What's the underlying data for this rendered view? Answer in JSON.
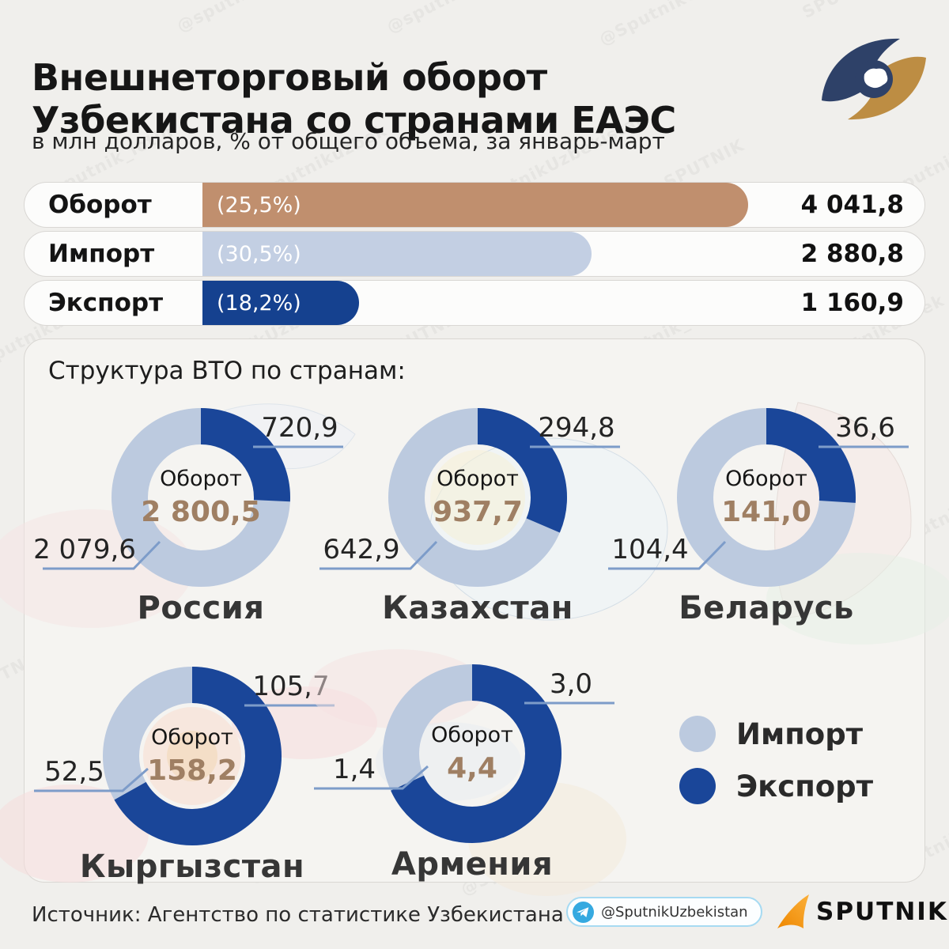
{
  "header": {
    "title": "Внешнеторговый оборот\nУзбекистана со странами ЕАЭС",
    "subtitle": "в млн долларов, % от общего объема, за январь-март",
    "logo": "eaeu-logo"
  },
  "chart_data": [
    {
      "type": "bar",
      "title": "Внешнеторговый оборот Узбекистана со странами ЕАЭС",
      "unit": "млн долларов США",
      "categories": [
        "Оборот",
        "Импорт",
        "Экспорт"
      ],
      "values": [
        4041.8,
        2880.8,
        1160.9
      ],
      "value_labels": [
        "4 041,8",
        "2 880,8",
        "1 160,9"
      ],
      "percent_labels": [
        "(25,5%)",
        "(30,5%)",
        "(18,2%)"
      ],
      "colors": [
        "#c08f6e",
        "#c3cfe3",
        "#15418f"
      ],
      "xlim": [
        0,
        4041.8
      ],
      "grid": false,
      "legend_position": "none"
    },
    {
      "type": "pie",
      "title": "Структура ВТО по странам:",
      "series_labels": [
        "Импорт",
        "Экспорт"
      ],
      "import_color": "#bccadf",
      "export_color": "#1a4699",
      "countries": [
        {
          "name": "Россия",
          "center_label": "Оборот",
          "total": 2800.5,
          "total_label": "2 800,5",
          "export": 720.9,
          "export_label": "720,9",
          "import": 2079.6,
          "import_label": "2 079,6"
        },
        {
          "name": "Казахстан",
          "center_label": "Оборот",
          "total": 937.7,
          "total_label": "937,7",
          "export": 294.8,
          "export_label": "294,8",
          "import": 642.9,
          "import_label": "642,9"
        },
        {
          "name": "Беларусь",
          "center_label": "Оборот",
          "total": 141.0,
          "total_label": "141,0",
          "export": 36.6,
          "export_label": "36,6",
          "import": 104.4,
          "import_label": "104,4"
        },
        {
          "name": "Кыргызстан",
          "center_label": "Оборот",
          "total": 158.2,
          "total_label": "158,2",
          "export": 105.7,
          "export_label": "105,7",
          "import": 52.5,
          "import_label": "52,5"
        },
        {
          "name": "Армения",
          "center_label": "Оборот",
          "total": 4.4,
          "total_label": "4,4",
          "export": 3.0,
          "export_label": "3,0",
          "import": 1.4,
          "import_label": "1,4"
        }
      ]
    }
  ],
  "legend": {
    "items": [
      {
        "label": "Импорт",
        "color": "#bccadf"
      },
      {
        "label": "Экспорт",
        "color": "#1a4699"
      }
    ]
  },
  "footer": {
    "source": "Источник: Агентство по статистике Узбекистана",
    "telegram": "@SputnikUzbekistan",
    "brand": "SPUTNIK"
  },
  "watermark": {
    "texts": [
      "SPUTNIK",
      "@sputnik_lotin",
      "@sputnikuzbek",
      "@SputnikUzbekistan"
    ]
  },
  "palette": {
    "turnover_tan": "#c08f6e",
    "import_light_blue": "#c3cfe3",
    "export_dark_blue": "#15418f",
    "callout_line": "#7d9cc9",
    "center_value_tan": "#9f7f63",
    "background": "#f0efec"
  }
}
